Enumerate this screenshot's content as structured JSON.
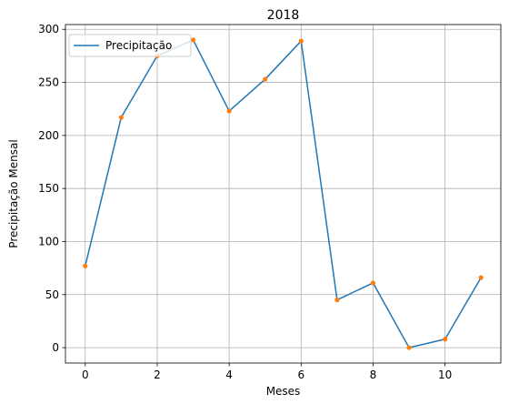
{
  "chart_data": {
    "type": "line",
    "title": "2018",
    "xlabel": "Meses",
    "ylabel": "Precipitação Mensal",
    "x": [
      0,
      1,
      2,
      3,
      4,
      5,
      6,
      7,
      8,
      9,
      10,
      11
    ],
    "series": [
      {
        "name": "Precipitação",
        "values": [
          77,
          217,
          275,
          290,
          223,
          253,
          289,
          45,
          61,
          0,
          8,
          66
        ],
        "line_color": "#1f77b4",
        "marker_color": "#ff7f0e"
      }
    ],
    "xlim": [
      -0.55,
      11.55
    ],
    "ylim": [
      -14.5,
      304.5
    ],
    "xticks": [
      0,
      2,
      4,
      6,
      8,
      10
    ],
    "yticks": [
      0,
      50,
      100,
      150,
      200,
      250,
      300
    ],
    "grid": true,
    "legend_position": "top-left"
  }
}
